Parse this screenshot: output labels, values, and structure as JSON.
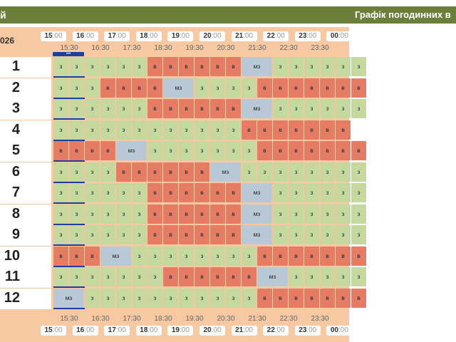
{
  "header": {
    "left_title": "й",
    "right_title": "Графік погодинних в"
  },
  "year_label": "026",
  "current_marker": "•••",
  "hours": [
    "15",
    "16",
    "17",
    "18",
    "19",
    "20",
    "21",
    "22",
    "23",
    "00"
  ],
  "hour_minutes": ":00",
  "half_hours": [
    "15:30",
    "16:30",
    "17:30",
    "18:30",
    "19:30",
    "20:30",
    "21:30",
    "22:30",
    "23:30"
  ],
  "legend_codes": {
    "z": "з",
    "v": "в",
    "m": "мз"
  },
  "colors": {
    "on": "#c5d89e",
    "off": "#e67c63",
    "maybe": "#b8c8d6",
    "header": "#6b7f3b",
    "panel": "#f6c9a3"
  },
  "groups": [
    {
      "label": "1",
      "cells": "zzzzzzvvvvvvmzzzzzz"
    },
    {
      "label": "2",
      "cells": "zzzvvvvmzzzzvvvvvvv"
    },
    {
      "label": "3",
      "cells": "zzzzzzvvvvvvmzzzzzz"
    },
    {
      "label": "4",
      "cells": "zzzzzzzzzzzzvvvvvvv"
    },
    {
      "label": "5",
      "cells": "vvvvmzzzzzzzvvvvvvv"
    },
    {
      "label": "6",
      "cells": "zzzzvvvvvvmzzzzzzzz"
    },
    {
      "label": "7",
      "cells": "zzzzzzvvvvvvmzzzzzz"
    },
    {
      "label": "8",
      "cells": "zzzzzzvvvvvvmzzzzzz"
    },
    {
      "label": "9",
      "cells": "zzzzzzvvvvvvmzzzzzz"
    },
    {
      "label": "10",
      "cells": "vvvmzzzzzzzzvvvvvvv"
    },
    {
      "label": "11",
      "cells": "zzzzzzzvvvvvvmzzzzz"
    },
    {
      "label": "12",
      "cells": "mzzzzzzzzzzzvvvvvvv"
    }
  ]
}
